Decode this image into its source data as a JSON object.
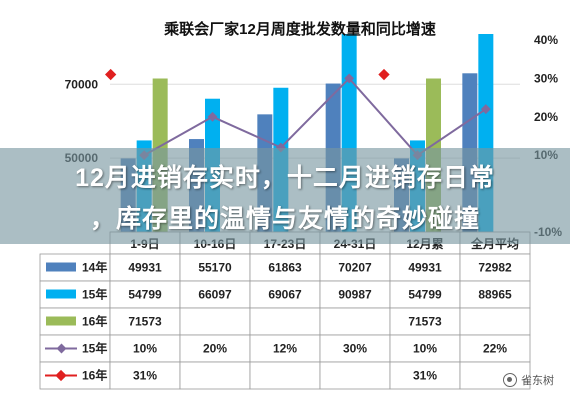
{
  "chart_data": {
    "type": "bar",
    "title": "乘联会厂家12月周度批发数量和同比增速",
    "categories": [
      "1-9日",
      "10-16日",
      "17-23日",
      "24-31日",
      "12月累",
      "全月平均"
    ],
    "y_left_ticks": [
      "50000",
      "70000"
    ],
    "y_right_ticks": [
      "40%",
      "30%",
      "20%",
      "10%",
      "-10%"
    ],
    "series": [
      {
        "name": "14年",
        "kind": "bar",
        "color": "#4F81BD",
        "values": [
          49931,
          55170,
          61863,
          70207,
          49931,
          72982
        ],
        "labels": [
          "49931",
          "55170",
          "61863",
          "70207",
          "49931",
          "72982"
        ]
      },
      {
        "name": "15年",
        "kind": "bar",
        "color": "#00B0F0",
        "values": [
          54799,
          66097,
          69067,
          90987,
          54799,
          88965
        ],
        "labels": [
          "54799",
          "66097",
          "69067",
          "90987",
          "54799",
          "88965"
        ]
      },
      {
        "name": "16年",
        "kind": "bar",
        "color": "#9BBB59",
        "values": [
          71573,
          null,
          null,
          null,
          71573,
          null
        ],
        "labels": [
          "71573",
          "",
          "",
          "",
          "71573",
          ""
        ]
      },
      {
        "name": "15年",
        "kind": "line",
        "color": "#7F6A9E",
        "values": [
          10,
          20,
          12,
          30,
          10,
          22
        ],
        "labels": [
          "10%",
          "20%",
          "12%",
          "30%",
          "10%",
          "22%"
        ]
      },
      {
        "name": "16年",
        "kind": "point",
        "color": "#E02020",
        "values": [
          31,
          null,
          null,
          null,
          31,
          null
        ],
        "labels": [
          "31%",
          "",
          "",
          "",
          "31%",
          ""
        ]
      }
    ]
  },
  "overlay": {
    "line1": "12月进销存实时，十二月进销存日常",
    "line2": "，库存里的温情与友情的奇妙碰撞"
  },
  "watermark": "雀东树"
}
